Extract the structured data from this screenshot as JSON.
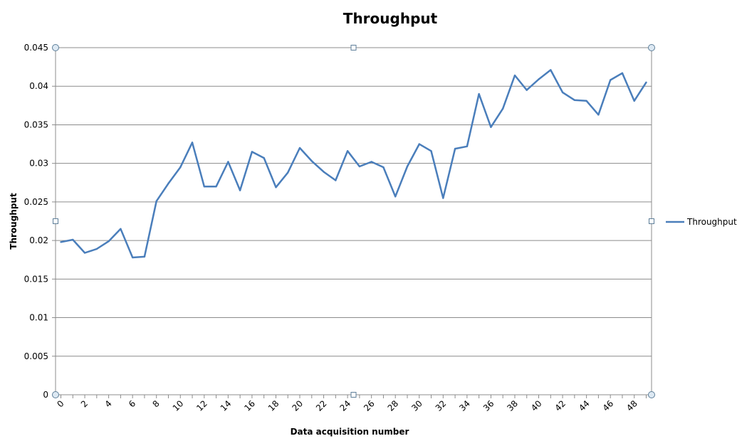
{
  "chart_data": {
    "type": "line",
    "title": "Throughput",
    "xlabel": "Data acquisition number",
    "ylabel": "Throughput",
    "x_tick_labels": [
      "0",
      "2",
      "4",
      "6",
      "8",
      "10",
      "12",
      "14",
      "16",
      "18",
      "20",
      "22",
      "24",
      "26",
      "28",
      "30",
      "32",
      "34",
      "36",
      "38",
      "40",
      "42",
      "44",
      "46",
      "48"
    ],
    "y_tick_labels": [
      "0",
      "0.005",
      "0.01",
      "0.015",
      "0.02",
      "0.025",
      "0.03",
      "0.035",
      "0.04",
      "0.045"
    ],
    "ylim": [
      0,
      0.045
    ],
    "xlim": [
      0,
      49
    ],
    "grid": true,
    "legend_position": "right",
    "series": [
      {
        "name": "Throughput",
        "color": "#4a7ebb",
        "x": [
          0,
          1,
          2,
          3,
          4,
          5,
          6,
          7,
          8,
          9,
          10,
          11,
          12,
          13,
          14,
          15,
          16,
          17,
          18,
          19,
          20,
          21,
          22,
          23,
          24,
          25,
          26,
          27,
          28,
          29,
          30,
          31,
          32,
          33,
          34,
          35,
          36,
          37,
          38,
          39,
          40,
          41,
          42,
          43,
          44,
          45,
          46,
          47,
          48,
          49
        ],
        "values": [
          0.0198,
          0.0201,
          0.0184,
          0.0189,
          0.0199,
          0.0215,
          0.0178,
          0.0179,
          0.0251,
          0.0274,
          0.0295,
          0.0327,
          0.027,
          0.027,
          0.0302,
          0.0265,
          0.0315,
          0.0307,
          0.0269,
          0.0288,
          0.032,
          0.0303,
          0.0289,
          0.0278,
          0.0316,
          0.0296,
          0.0302,
          0.0295,
          0.0257,
          0.0296,
          0.0325,
          0.0316,
          0.0255,
          0.0319,
          0.0322,
          0.039,
          0.0347,
          0.0371,
          0.0414,
          0.0395,
          0.0409,
          0.0421,
          0.0392,
          0.0382,
          0.0381,
          0.0363,
          0.0408,
          0.0417,
          0.0381,
          0.0405
        ]
      }
    ]
  }
}
